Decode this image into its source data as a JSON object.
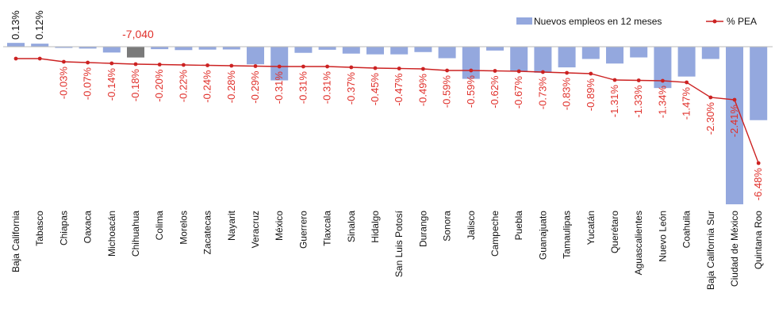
{
  "chart_data": {
    "type": "bar",
    "categories": [
      "Baja California",
      "Tabasco",
      "Chiapas",
      "Oaxaca",
      "Michoacán",
      "Chihuahua",
      "Colima",
      "Morelos",
      "Zacatecas",
      "Nayarit",
      "Veracruz",
      "México",
      "Guerrero",
      "Tlaxcala",
      "Sinaloa",
      "Hidalgo",
      "San Luis Potosí",
      "Durango",
      "Sonora",
      "Jalisco",
      "Campeche",
      "Puebla",
      "Guanajuato",
      "Tamaulipas",
      "Yucatán",
      "Querétaro",
      "Aguascalientes",
      "Nuevo León",
      "Coahuila",
      "Baja California Sur",
      "Ciudad de México",
      "Quintana Roo"
    ],
    "series": [
      {
        "name": "Nuevos empleos en 12 meses",
        "values": [
          2500,
          2000,
          -600,
          -1200,
          -3800,
          -7040,
          -1600,
          -2200,
          -1900,
          -1800,
          -11500,
          -22000,
          -4000,
          -2000,
          -4500,
          -5000,
          -5000,
          -3500,
          -7500,
          -21000,
          -2500,
          -16000,
          -17000,
          -13500,
          -8000,
          -11000,
          -7000,
          -27000,
          -19500,
          -8000,
          -103000,
          -48000
        ],
        "color": "#94a8de",
        "highlight_index": 5,
        "highlight_color": "#7a7a7a",
        "highlight_label": "-7,040"
      },
      {
        "name": "% PEA",
        "values": [
          0.13,
          0.12,
          -0.03,
          -0.07,
          -0.14,
          -0.18,
          -0.2,
          -0.22,
          -0.24,
          -0.28,
          -0.29,
          -0.31,
          -0.31,
          -0.31,
          -0.37,
          -0.45,
          -0.47,
          -0.49,
          -0.59,
          -0.59,
          -0.62,
          -0.67,
          -0.73,
          -0.83,
          -0.89,
          -1.31,
          -1.33,
          -1.34,
          -1.47,
          -2.3,
          -2.41,
          -6.48
        ],
        "labels": [
          "0.13%",
          "0.12%",
          "-0.03%",
          "-0.07%",
          "-0.14%",
          "-0.18%",
          "-0.20%",
          "-0.22%",
          "-0.24%",
          "-0.28%",
          "-0.29%",
          "-0.31%",
          "-0.31%",
          "-0.31%",
          "-0.37%",
          "-0.45%",
          "-0.47%",
          "-0.49%",
          "-0.59%",
          "-0.59%",
          "-0.62%",
          "-0.67%",
          "-0.73%",
          "-0.83%",
          "-0.89%",
          "-1.31%",
          "-1.33%",
          "-1.34%",
          "-1.47%",
          "-2.30%",
          "-2.41%",
          "-6.48%"
        ],
        "color": "#cc2222"
      }
    ],
    "legend_position": "top-right",
    "title": "",
    "xlabel": "",
    "ylabel": "",
    "grid": false
  }
}
